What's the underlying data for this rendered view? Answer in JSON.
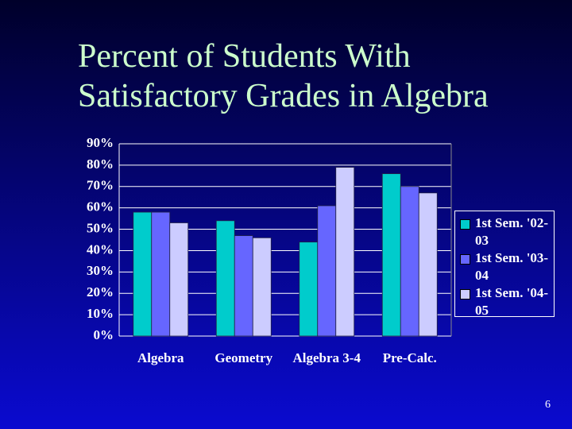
{
  "chart_data": {
    "type": "bar",
    "title": "Percent of Students With Satisfactory Grades in Algebra",
    "categories": [
      "Algebra",
      "Geometry",
      "Algebra 3-4",
      "Pre-Calc."
    ],
    "series": [
      {
        "name": "1st Sem. '02-03",
        "color": "#00cccc",
        "values": [
          58,
          54,
          44,
          76
        ]
      },
      {
        "name": "1st Sem. '03-04",
        "color": "#6666ff",
        "values": [
          58,
          47,
          61,
          70
        ]
      },
      {
        "name": "1st Sem. '04-05",
        "color": "#ccccff",
        "values": [
          53,
          46,
          79,
          67
        ]
      }
    ],
    "ylim": [
      0,
      90
    ],
    "yticks": [
      {
        "value": 0,
        "label": "0%"
      },
      {
        "value": 10,
        "label": "10%"
      },
      {
        "value": 20,
        "label": "20%"
      },
      {
        "value": 30,
        "label": "30%"
      },
      {
        "value": 40,
        "label": "40%"
      },
      {
        "value": 50,
        "label": "50%"
      },
      {
        "value": 60,
        "label": "60%"
      },
      {
        "value": 70,
        "label": "70%"
      },
      {
        "value": 80,
        "label": "80%"
      },
      {
        "value": 90,
        "label": "90%"
      }
    ],
    "grid": true,
    "legend": "right"
  },
  "page_number": "6"
}
